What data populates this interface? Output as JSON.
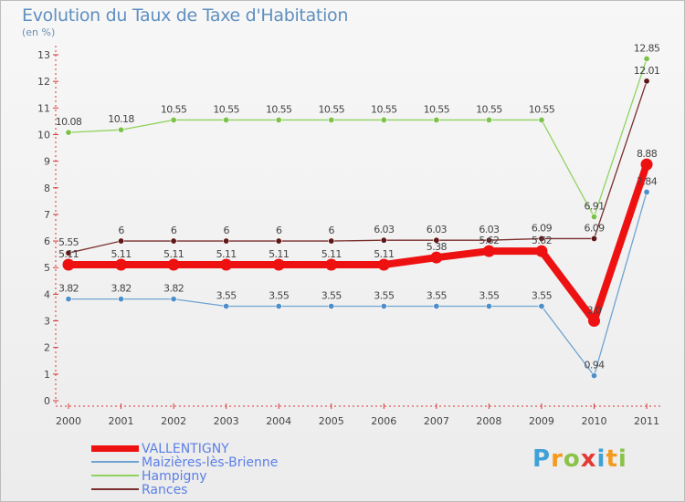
{
  "header": {
    "title": "Evolution du Taux de Taxe d'Habitation",
    "subtitle": "(en %)"
  },
  "logo": {
    "letters": [
      "P",
      "r",
      "o",
      "x",
      "i",
      "t",
      "i"
    ],
    "colors": [
      "#3fa1d8",
      "#f39a1f",
      "#8bc34a",
      "#e53935",
      "#3fa1d8",
      "#f39a1f",
      "#8bc34a"
    ]
  },
  "chart_data": {
    "type": "line",
    "title": "Evolution du Taux de Taxe d'Habitation",
    "ylabel": "(en %)",
    "xlabel": "",
    "ylim": [
      0,
      13
    ],
    "yticks": [
      0,
      1,
      2,
      3,
      4,
      5,
      6,
      7,
      8,
      9,
      10,
      11,
      12,
      13
    ],
    "grid": false,
    "legend_position": "bottom-left",
    "categories": [
      "2000",
      "2001",
      "2002",
      "2003",
      "2004",
      "2005",
      "2006",
      "2007",
      "2008",
      "2009",
      "2010",
      "2011"
    ],
    "series": [
      {
        "name": "Hampigny",
        "color": "#8fd35f",
        "marker": "#7cc24a",
        "values": [
          10.08,
          10.18,
          10.55,
          10.55,
          10.55,
          10.55,
          10.55,
          10.55,
          10.55,
          10.55,
          6.91,
          12.85
        ],
        "labels": [
          "10.08",
          "10.18",
          "10.55",
          "10.55",
          "10.55",
          "10.55",
          "10.55",
          "10.55",
          "10.55",
          "10.55",
          "6.91",
          "12.85"
        ]
      },
      {
        "name": "Rances",
        "color": "#7b2f2f",
        "marker": "#5e1616",
        "values": [
          5.55,
          6,
          6,
          6,
          6,
          6,
          6.03,
          6.03,
          6.03,
          6.09,
          6.09,
          12.01
        ],
        "labels": [
          "5.55",
          "6",
          "6",
          "6",
          "6",
          "6",
          "6.03",
          "6.03",
          "6.03",
          "6.09",
          "6.09",
          "12.01"
        ]
      },
      {
        "name": "Maizières-lès-Brienne",
        "color": "#6fa3d2",
        "marker": "#4f8fc9",
        "values": [
          3.82,
          3.82,
          3.82,
          3.55,
          3.55,
          3.55,
          3.55,
          3.55,
          3.55,
          3.55,
          0.94,
          7.84
        ],
        "labels": [
          "3.82",
          "3.82",
          "3.82",
          "3.55",
          "3.55",
          "3.55",
          "3.55",
          "3.55",
          "3.55",
          "3.55",
          "0.94",
          "7.84"
        ]
      },
      {
        "name": "VALLENTIGNY",
        "color": "#ee1111",
        "marker": "#ee1111",
        "values": [
          5.11,
          5.11,
          5.11,
          5.11,
          5.11,
          5.11,
          5.11,
          5.38,
          5.62,
          5.62,
          3.0,
          8.88
        ],
        "labels": [
          "5.11",
          "5.11",
          "5.11",
          "5.11",
          "5.11",
          "5.11",
          "5.11",
          "5.38",
          "5.62",
          "5.62",
          "3.0",
          "8.88"
        ]
      }
    ],
    "legend": [
      "VALLENTIGNY",
      "Maizières-lès-Brienne",
      "Hampigny",
      "Rances"
    ]
  }
}
